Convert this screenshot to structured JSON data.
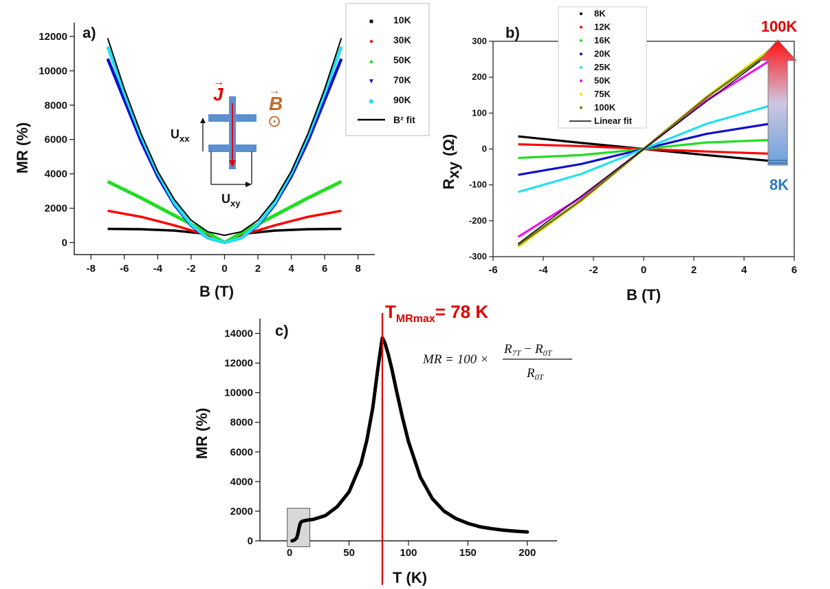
{
  "colors": {
    "black": "#000000",
    "red": "#ff0000",
    "green": "#22dd22",
    "blue": "#1010cc",
    "cyan": "#22e0ee",
    "magenta": "#ee11ee",
    "yellow": "#e8e800",
    "olive": "#77771a",
    "accent_red": "#e00000",
    "accent_blue": "#2a7ac0",
    "accent_orange": "#c06a2a",
    "device_blue": "#5b8fcf"
  },
  "chart_data": [
    {
      "type": "line",
      "panel_label": "a)",
      "xlabel": "B (T)",
      "ylabel": "MR (%)",
      "xlim": [
        -9,
        9
      ],
      "ylim": [
        -700,
        12800
      ],
      "xticks": [
        -8,
        -6,
        -4,
        -2,
        0,
        2,
        4,
        6,
        8
      ],
      "yticks": [
        0,
        2000,
        4000,
        6000,
        8000,
        10000,
        12000
      ],
      "legend_position": "top-right",
      "series": [
        {
          "name": "10K",
          "color": "#000000",
          "marker": "■",
          "x": [
            -7,
            -5,
            -3,
            -1,
            0,
            1,
            3,
            5,
            7
          ],
          "y": [
            800,
            780,
            700,
            500,
            0,
            500,
            700,
            780,
            800
          ]
        },
        {
          "name": "30K",
          "color": "#ff0000",
          "marker": "●",
          "x": [
            -7,
            -5,
            -3,
            -1,
            0,
            1,
            3,
            5,
            7
          ],
          "y": [
            1850,
            1500,
            1000,
            420,
            0,
            420,
            1000,
            1500,
            1850
          ]
        },
        {
          "name": "50K",
          "color": "#22dd22",
          "marker": "▲",
          "x": [
            -7,
            -5,
            -3,
            -1,
            0,
            1,
            3,
            5,
            7
          ],
          "y": [
            3550,
            2600,
            1580,
            560,
            0,
            560,
            1580,
            2600,
            3550
          ]
        },
        {
          "name": "70K",
          "color": "#1010cc",
          "marker": "▼",
          "x": [
            -7,
            -6,
            -5,
            -4,
            -3,
            -2,
            -1,
            0,
            1,
            2,
            3,
            4,
            5,
            6,
            7
          ],
          "y": [
            10700,
            8300,
            5900,
            3850,
            2200,
            1000,
            260,
            0,
            260,
            1000,
            2200,
            3850,
            5900,
            8300,
            10700
          ]
        },
        {
          "name": "90K",
          "color": "#22e0ee",
          "marker": "◆",
          "x": [
            -7,
            -6,
            -5,
            -4,
            -3,
            -2,
            -1,
            0,
            1,
            2,
            3,
            4,
            5,
            6,
            7
          ],
          "y": [
            11400,
            8700,
            6200,
            4050,
            2300,
            1050,
            270,
            0,
            270,
            1050,
            2300,
            4050,
            6200,
            8700,
            11400
          ]
        },
        {
          "name": "B² fit",
          "color": "#000000",
          "marker": "line",
          "x": [
            -7,
            -6,
            -5,
            -4,
            -3,
            -2,
            -1,
            0,
            1,
            2,
            3,
            4,
            5,
            6,
            7
          ],
          "y": [
            11900,
            8950,
            6350,
            4150,
            2500,
            1300,
            630,
            420,
            630,
            1300,
            2500,
            4150,
            6350,
            8950,
            11900
          ]
        }
      ],
      "inset": {
        "current_symbol": "J",
        "field_symbol": "B",
        "field_mark": "⊙",
        "uxx_base": "U",
        "uxx_sub": "xx",
        "uxy_base": "U",
        "uxy_sub": "xy"
      }
    },
    {
      "type": "line",
      "panel_label": "b)",
      "xlabel": "B (T)",
      "ylabel_base": "R",
      "ylabel_sub": "xy",
      "ylabel_unit": "(Ω)",
      "xlim": [
        -6,
        6
      ],
      "ylim": [
        -300,
        300
      ],
      "xticks": [
        -6,
        -4,
        -2,
        0,
        2,
        4,
        6
      ],
      "yticks": [
        -300,
        -200,
        -100,
        0,
        100,
        200,
        300
      ],
      "legend_position": "top-left",
      "series": [
        {
          "name": "8K",
          "color": "#000000",
          "x": [
            -5,
            -2.5,
            0,
            2.5,
            5
          ],
          "y": [
            35,
            17,
            0,
            -17,
            -33
          ]
        },
        {
          "name": "12K",
          "color": "#ff0000",
          "x": [
            -5,
            -2.5,
            0,
            2.5,
            5
          ],
          "y": [
            13,
            8,
            0,
            -7,
            -13
          ]
        },
        {
          "name": "16K",
          "color": "#22dd22",
          "x": [
            -5,
            -2.5,
            0,
            2.5,
            5
          ],
          "y": [
            -25,
            -17,
            0,
            18,
            25
          ]
        },
        {
          "name": "20K",
          "color": "#1010cc",
          "x": [
            -5,
            -2.5,
            0,
            2.5,
            5
          ],
          "y": [
            -72,
            -42,
            0,
            42,
            70
          ]
        },
        {
          "name": "25K",
          "color": "#22e0ee",
          "x": [
            -5,
            -2.5,
            0,
            2.5,
            5
          ],
          "y": [
            -120,
            -70,
            0,
            70,
            120
          ]
        },
        {
          "name": "50K",
          "color": "#ee11ee",
          "x": [
            -5,
            -2.5,
            0,
            2.5,
            5
          ],
          "y": [
            -245,
            -135,
            0,
            135,
            245
          ]
        },
        {
          "name": "75K",
          "color": "#e8e800",
          "x": [
            -5,
            -2.5,
            0,
            2.5,
            5
          ],
          "y": [
            -272,
            -145,
            0,
            145,
            275
          ]
        },
        {
          "name": "100K",
          "color": "#77771a",
          "x": [
            -5,
            -2.5,
            0,
            2.5,
            5
          ],
          "y": [
            -268,
            -143,
            0,
            143,
            268
          ]
        },
        {
          "name": "Linear fit",
          "color": "#000000",
          "x": [
            -5,
            0,
            5
          ],
          "y": [
            -264,
            0,
            264
          ]
        }
      ],
      "arrow": {
        "top_label": "100K",
        "bottom_label": "8K"
      }
    },
    {
      "type": "line",
      "panel_label": "c)",
      "xlabel": "T (K)",
      "ylabel": "MR (%)",
      "xlim": [
        -25,
        225
      ],
      "ylim": [
        0,
        15000
      ],
      "xticks": [
        0,
        50,
        100,
        150,
        200
      ],
      "yticks": [
        0,
        2000,
        4000,
        6000,
        8000,
        10000,
        12000,
        14000
      ],
      "series": [
        {
          "name": "",
          "color": "#000000",
          "x": [
            2,
            4,
            6,
            7,
            8,
            9,
            10,
            12,
            15,
            20,
            30,
            40,
            50,
            60,
            65,
            70,
            74,
            77,
            78,
            80,
            83,
            86,
            90,
            95,
            100,
            110,
            120,
            130,
            140,
            150,
            160,
            170,
            180,
            190,
            200
          ],
          "y": [
            0,
            50,
            200,
            500,
            900,
            1200,
            1300,
            1350,
            1400,
            1450,
            1700,
            2300,
            3300,
            5200,
            6800,
            9000,
            11500,
            13200,
            13700,
            13400,
            12600,
            11600,
            10100,
            8300,
            6700,
            4300,
            2850,
            2000,
            1500,
            1180,
            950,
            820,
            720,
            650,
            600
          ]
        }
      ],
      "annotation": {
        "label_base": "T",
        "label_sub": "MRmax",
        "label_value": "= 78 K",
        "x": 78
      },
      "highlight_box_x": [
        -2,
        17
      ],
      "highlight_box_y": [
        -400,
        2200
      ],
      "equation": {
        "lhs": "MR = 100 ×",
        "num_a": "R",
        "num_a_sub": "7T",
        "minus": "−",
        "num_b": "R",
        "num_b_sub": "0T",
        "den": "R",
        "den_sub": "0T"
      }
    }
  ]
}
